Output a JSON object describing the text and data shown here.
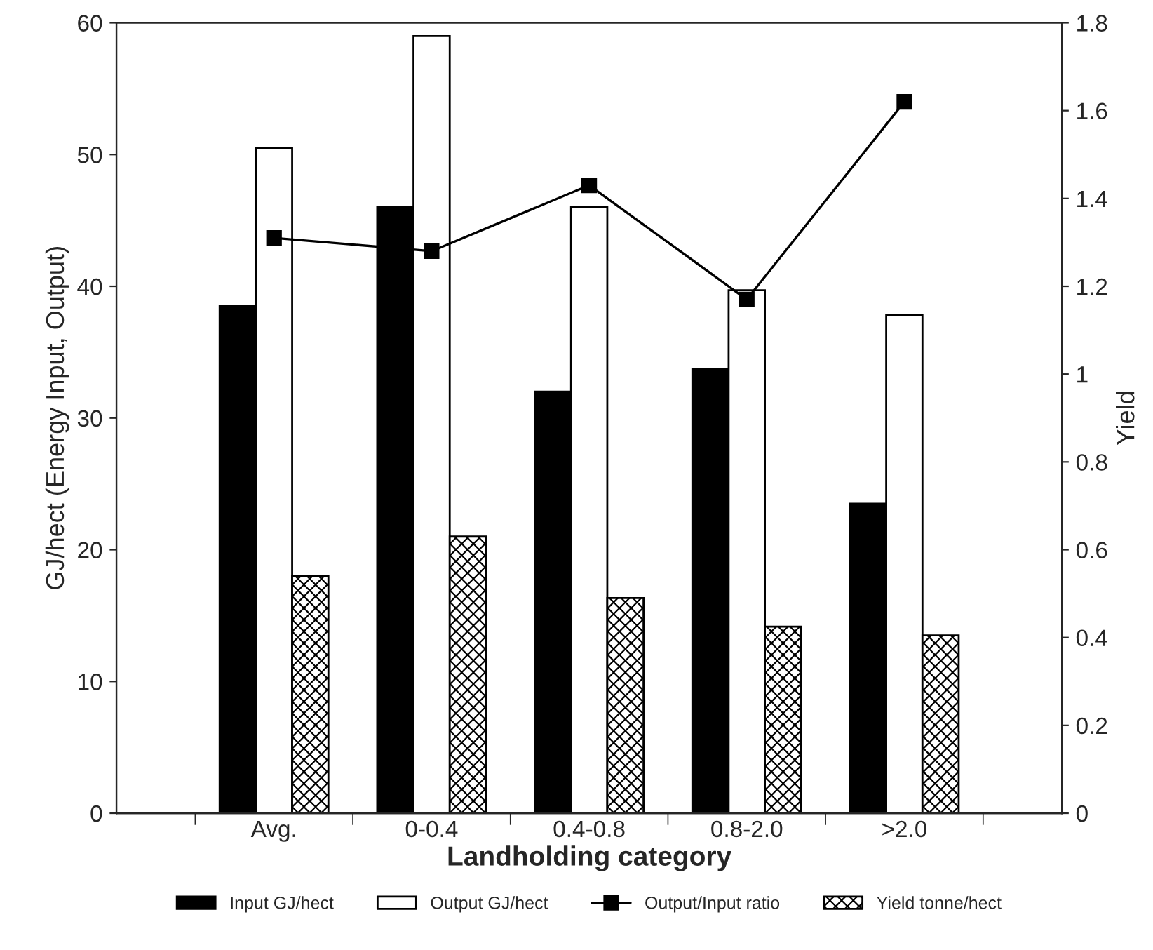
{
  "chart_data": {
    "type": "bar",
    "xlabel": "Landholding category",
    "ylabel": "GJ/hect (Energy Input, Output)",
    "y2label": "Yield",
    "categories": [
      "Avg.",
      "0-0.4",
      "0.4-0.8",
      "0.8-2.0",
      ">2.0"
    ],
    "series": [
      {
        "name": "Input GJ/hect",
        "color": "#000000",
        "values": [
          38.5,
          46,
          32,
          33.7,
          23.5
        ]
      },
      {
        "name": "Output GJ/hect",
        "color": "#ffffff",
        "values": [
          50.5,
          59,
          46,
          39.7,
          37.8
        ]
      },
      {
        "name": "Output/Input ratio",
        "type": "line",
        "axis": "y2",
        "color": "#000000",
        "marker": "square",
        "values": [
          1.31,
          1.28,
          1.43,
          1.17,
          1.62
        ]
      },
      {
        "name": "Yield tonne/hect",
        "axis": "y2",
        "color": "#000000",
        "values": [
          0.54,
          0.63,
          0.49,
          0.425,
          0.405
        ]
      }
    ],
    "ylim": [
      0,
      60
    ],
    "yticks": [
      0,
      10,
      20,
      30,
      40,
      50,
      60
    ],
    "y2lim": [
      0,
      1.8
    ],
    "y2ticks": [
      0,
      0.2,
      0.4,
      0.6,
      0.8,
      1,
      1.2,
      1.4,
      1.6,
      1.8
    ],
    "grid": false,
    "legend": "bottom"
  }
}
